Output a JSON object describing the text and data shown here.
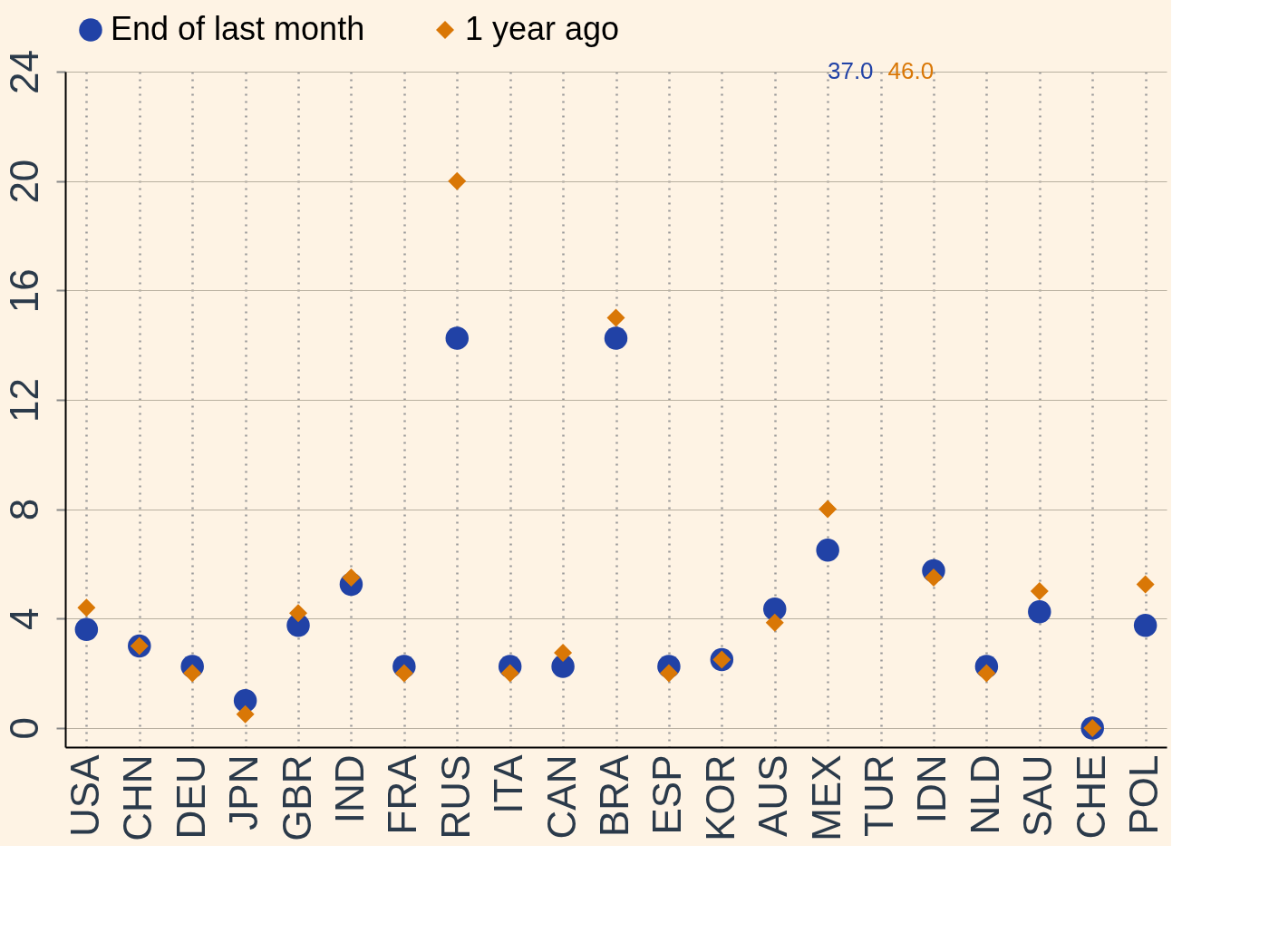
{
  "chart_data": {
    "type": "scatter",
    "categories": [
      "USA",
      "CHN",
      "DEU",
      "JPN",
      "GBR",
      "IND",
      "FRA",
      "RUS",
      "ITA",
      "CAN",
      "BRA",
      "ESP",
      "KOR",
      "AUS",
      "MEX",
      "TUR",
      "IDN",
      "NLD",
      "SAU",
      "CHE",
      "POL"
    ],
    "series": [
      {
        "name": "End of last month",
        "color": "#2142a6",
        "marker": "circle",
        "values": [
          3.6,
          3.0,
          2.25,
          1.0,
          3.75,
          5.25,
          2.25,
          14.25,
          2.25,
          2.25,
          14.25,
          2.25,
          2.5,
          4.35,
          6.5,
          null,
          5.75,
          2.25,
          4.25,
          0,
          3.75
        ]
      },
      {
        "name": "1 year ago",
        "color": "#d97706",
        "marker": "diamond",
        "values": [
          4.4,
          3.0,
          2.0,
          0.5,
          4.2,
          5.5,
          2.0,
          20.0,
          2.0,
          2.75,
          15.0,
          2.0,
          2.5,
          3.85,
          8.0,
          null,
          5.5,
          2.0,
          5.0,
          0,
          5.25
        ]
      }
    ],
    "ylim": [
      -0.7,
      24
    ],
    "yticks": [
      0,
      4,
      8,
      12,
      16,
      20,
      24
    ],
    "annotations": [
      "37.0",
      "46.0"
    ],
    "grid": true,
    "legend": "top"
  }
}
